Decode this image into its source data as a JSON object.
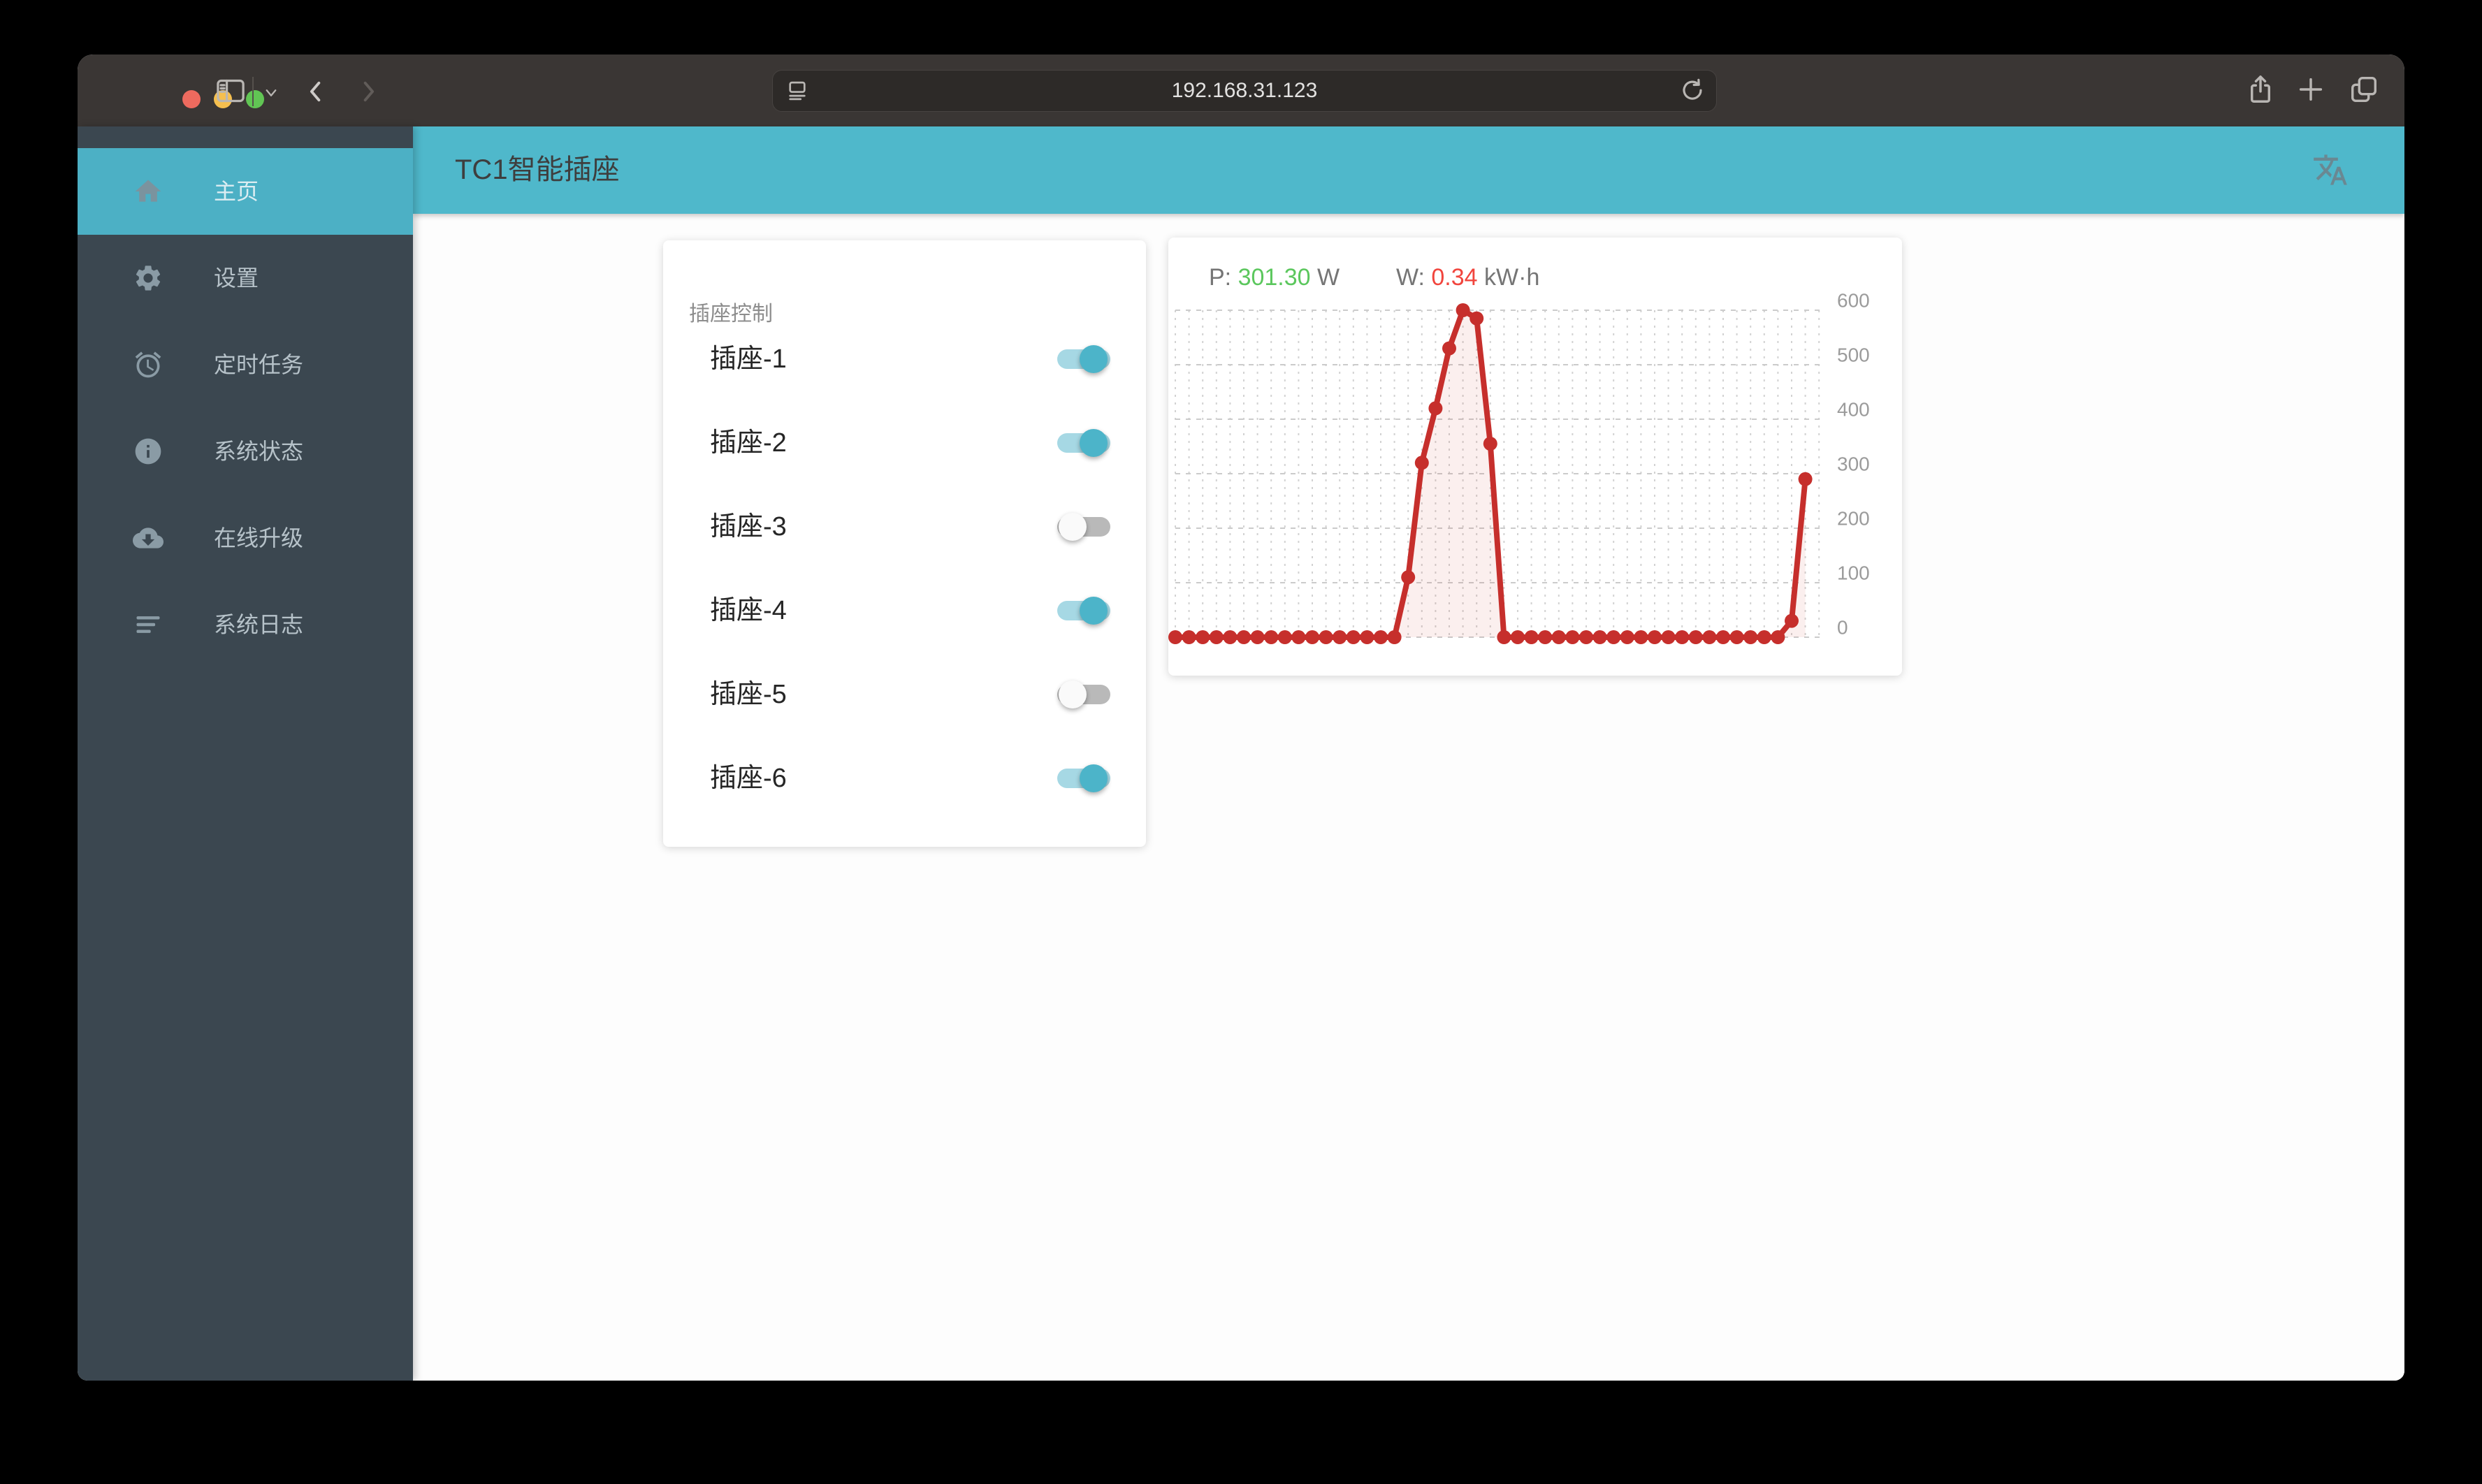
{
  "browser": {
    "url": "192.168.31.123",
    "traffic_lights": [
      {
        "name": "close",
        "color": "#ed6a5e"
      },
      {
        "name": "minimize",
        "color": "#f5bf4f"
      },
      {
        "name": "zoom",
        "color": "#61c554"
      }
    ]
  },
  "app_bar": {
    "title": "TC1智能插座",
    "accent_color": "#4fb8cb"
  },
  "sidebar": {
    "background_color": "#3b4750",
    "active_color": "#4cb0c5",
    "items": [
      {
        "label": "主页",
        "icon": "home-icon",
        "active": true
      },
      {
        "label": "设置",
        "icon": "gear-icon",
        "active": false
      },
      {
        "label": "定时任务",
        "icon": "alarm-icon",
        "active": false
      },
      {
        "label": "系统状态",
        "icon": "info-icon",
        "active": false
      },
      {
        "label": "在线升级",
        "icon": "cloud-download-icon",
        "active": false
      },
      {
        "label": "系统日志",
        "icon": "logs-icon",
        "active": false
      }
    ]
  },
  "socket_card": {
    "title": "插座控制",
    "on_color": "#4cb4c9",
    "off_color": "#b9b9b9",
    "sockets": [
      {
        "label": "插座-1",
        "on": true
      },
      {
        "label": "插座-2",
        "on": true
      },
      {
        "label": "插座-3",
        "on": false
      },
      {
        "label": "插座-4",
        "on": true
      },
      {
        "label": "插座-5",
        "on": false
      },
      {
        "label": "插座-6",
        "on": true
      }
    ]
  },
  "chart_card": {
    "power_label": "P:",
    "power_value": "301.30",
    "power_unit": "W",
    "power_color": "#5bc75d",
    "energy_label": "W:",
    "energy_value": "0.34",
    "energy_unit": "kW·h",
    "energy_color": "#f1453d"
  },
  "chart_data": {
    "type": "line",
    "values": [
      0,
      0,
      0,
      0,
      0,
      0,
      0,
      0,
      0,
      0,
      0,
      0,
      0,
      0,
      0,
      0,
      0,
      110,
      320,
      420,
      530,
      600,
      585,
      355,
      0,
      0,
      0,
      0,
      0,
      0,
      0,
      0,
      0,
      0,
      0,
      0,
      0,
      0,
      0,
      0,
      0,
      0,
      0,
      0,
      0,
      30,
      290
    ],
    "ylim": [
      0,
      600
    ],
    "y_ticks": [
      0,
      100,
      200,
      300,
      400,
      500,
      600
    ],
    "y_axis_position": "right",
    "x_labels_visible": false,
    "grid": "dashed",
    "line_color": "#c62f2c",
    "fill_color": "rgba(198,47,44,0.08)",
    "point_radius": 10
  }
}
